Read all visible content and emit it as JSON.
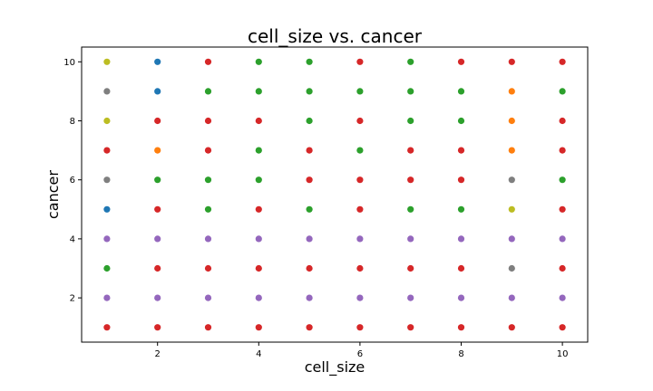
{
  "chart_data": {
    "type": "scatter",
    "title": "cell_size vs. cancer",
    "xlabel": "cell_size",
    "ylabel": "cancer",
    "xlim": [
      0.5,
      10.5
    ],
    "ylim": [
      0.5,
      10.5
    ],
    "xticks": [
      2,
      4,
      6,
      8,
      10
    ],
    "yticks": [
      2,
      4,
      6,
      8,
      10
    ],
    "xtick_labels": [
      "2",
      "4",
      "6",
      "8",
      "10"
    ],
    "ytick_labels": [
      "2",
      "4",
      "6",
      "8",
      "10"
    ],
    "grid": false,
    "legend": "none",
    "colors": {
      "blue": "#1f77b4",
      "orange": "#ff7f0e",
      "green": "#2ca02c",
      "red": "#d62728",
      "purple": "#9467bd",
      "gray": "#7f7f7f",
      "olive": "#bcbd22"
    },
    "points": [
      {
        "x": 1,
        "y": 10,
        "c": "olive"
      },
      {
        "x": 2,
        "y": 10,
        "c": "blue"
      },
      {
        "x": 3,
        "y": 10,
        "c": "red"
      },
      {
        "x": 4,
        "y": 10,
        "c": "green"
      },
      {
        "x": 5,
        "y": 10,
        "c": "green"
      },
      {
        "x": 6,
        "y": 10,
        "c": "red"
      },
      {
        "x": 7,
        "y": 10,
        "c": "green"
      },
      {
        "x": 8,
        "y": 10,
        "c": "red"
      },
      {
        "x": 9,
        "y": 10,
        "c": "red"
      },
      {
        "x": 10,
        "y": 10,
        "c": "red"
      },
      {
        "x": 1,
        "y": 9,
        "c": "gray"
      },
      {
        "x": 2,
        "y": 9,
        "c": "blue"
      },
      {
        "x": 3,
        "y": 9,
        "c": "green"
      },
      {
        "x": 4,
        "y": 9,
        "c": "green"
      },
      {
        "x": 5,
        "y": 9,
        "c": "green"
      },
      {
        "x": 6,
        "y": 9,
        "c": "green"
      },
      {
        "x": 7,
        "y": 9,
        "c": "green"
      },
      {
        "x": 8,
        "y": 9,
        "c": "green"
      },
      {
        "x": 9,
        "y": 9,
        "c": "orange"
      },
      {
        "x": 10,
        "y": 9,
        "c": "green"
      },
      {
        "x": 1,
        "y": 8,
        "c": "olive"
      },
      {
        "x": 2,
        "y": 8,
        "c": "red"
      },
      {
        "x": 3,
        "y": 8,
        "c": "red"
      },
      {
        "x": 4,
        "y": 8,
        "c": "red"
      },
      {
        "x": 5,
        "y": 8,
        "c": "green"
      },
      {
        "x": 6,
        "y": 8,
        "c": "red"
      },
      {
        "x": 7,
        "y": 8,
        "c": "green"
      },
      {
        "x": 8,
        "y": 8,
        "c": "green"
      },
      {
        "x": 9,
        "y": 8,
        "c": "orange"
      },
      {
        "x": 10,
        "y": 8,
        "c": "red"
      },
      {
        "x": 1,
        "y": 7,
        "c": "red"
      },
      {
        "x": 2,
        "y": 7,
        "c": "orange"
      },
      {
        "x": 3,
        "y": 7,
        "c": "red"
      },
      {
        "x": 4,
        "y": 7,
        "c": "green"
      },
      {
        "x": 5,
        "y": 7,
        "c": "red"
      },
      {
        "x": 6,
        "y": 7,
        "c": "green"
      },
      {
        "x": 7,
        "y": 7,
        "c": "red"
      },
      {
        "x": 8,
        "y": 7,
        "c": "red"
      },
      {
        "x": 9,
        "y": 7,
        "c": "orange"
      },
      {
        "x": 10,
        "y": 7,
        "c": "red"
      },
      {
        "x": 1,
        "y": 6,
        "c": "gray"
      },
      {
        "x": 2,
        "y": 6,
        "c": "green"
      },
      {
        "x": 3,
        "y": 6,
        "c": "green"
      },
      {
        "x": 4,
        "y": 6,
        "c": "green"
      },
      {
        "x": 5,
        "y": 6,
        "c": "red"
      },
      {
        "x": 6,
        "y": 6,
        "c": "red"
      },
      {
        "x": 7,
        "y": 6,
        "c": "red"
      },
      {
        "x": 8,
        "y": 6,
        "c": "red"
      },
      {
        "x": 9,
        "y": 6,
        "c": "gray"
      },
      {
        "x": 10,
        "y": 6,
        "c": "green"
      },
      {
        "x": 1,
        "y": 5,
        "c": "blue"
      },
      {
        "x": 2,
        "y": 5,
        "c": "red"
      },
      {
        "x": 3,
        "y": 5,
        "c": "green"
      },
      {
        "x": 4,
        "y": 5,
        "c": "red"
      },
      {
        "x": 5,
        "y": 5,
        "c": "green"
      },
      {
        "x": 6,
        "y": 5,
        "c": "red"
      },
      {
        "x": 7,
        "y": 5,
        "c": "green"
      },
      {
        "x": 8,
        "y": 5,
        "c": "green"
      },
      {
        "x": 9,
        "y": 5,
        "c": "olive"
      },
      {
        "x": 10,
        "y": 5,
        "c": "red"
      },
      {
        "x": 1,
        "y": 4,
        "c": "purple"
      },
      {
        "x": 2,
        "y": 4,
        "c": "purple"
      },
      {
        "x": 3,
        "y": 4,
        "c": "purple"
      },
      {
        "x": 4,
        "y": 4,
        "c": "purple"
      },
      {
        "x": 5,
        "y": 4,
        "c": "purple"
      },
      {
        "x": 6,
        "y": 4,
        "c": "purple"
      },
      {
        "x": 7,
        "y": 4,
        "c": "purple"
      },
      {
        "x": 8,
        "y": 4,
        "c": "purple"
      },
      {
        "x": 9,
        "y": 4,
        "c": "purple"
      },
      {
        "x": 10,
        "y": 4,
        "c": "purple"
      },
      {
        "x": 1,
        "y": 3,
        "c": "green"
      },
      {
        "x": 2,
        "y": 3,
        "c": "red"
      },
      {
        "x": 3,
        "y": 3,
        "c": "red"
      },
      {
        "x": 4,
        "y": 3,
        "c": "red"
      },
      {
        "x": 5,
        "y": 3,
        "c": "red"
      },
      {
        "x": 6,
        "y": 3,
        "c": "red"
      },
      {
        "x": 7,
        "y": 3,
        "c": "red"
      },
      {
        "x": 8,
        "y": 3,
        "c": "red"
      },
      {
        "x": 9,
        "y": 3,
        "c": "gray"
      },
      {
        "x": 10,
        "y": 3,
        "c": "red"
      },
      {
        "x": 1,
        "y": 2,
        "c": "purple"
      },
      {
        "x": 2,
        "y": 2,
        "c": "purple"
      },
      {
        "x": 3,
        "y": 2,
        "c": "purple"
      },
      {
        "x": 4,
        "y": 2,
        "c": "purple"
      },
      {
        "x": 5,
        "y": 2,
        "c": "purple"
      },
      {
        "x": 6,
        "y": 2,
        "c": "purple"
      },
      {
        "x": 7,
        "y": 2,
        "c": "purple"
      },
      {
        "x": 8,
        "y": 2,
        "c": "purple"
      },
      {
        "x": 9,
        "y": 2,
        "c": "purple"
      },
      {
        "x": 10,
        "y": 2,
        "c": "purple"
      },
      {
        "x": 1,
        "y": 1,
        "c": "red"
      },
      {
        "x": 2,
        "y": 1,
        "c": "red"
      },
      {
        "x": 3,
        "y": 1,
        "c": "red"
      },
      {
        "x": 4,
        "y": 1,
        "c": "red"
      },
      {
        "x": 5,
        "y": 1,
        "c": "red"
      },
      {
        "x": 6,
        "y": 1,
        "c": "red"
      },
      {
        "x": 7,
        "y": 1,
        "c": "red"
      },
      {
        "x": 8,
        "y": 1,
        "c": "red"
      },
      {
        "x": 9,
        "y": 1,
        "c": "red"
      },
      {
        "x": 10,
        "y": 1,
        "c": "red"
      }
    ]
  }
}
